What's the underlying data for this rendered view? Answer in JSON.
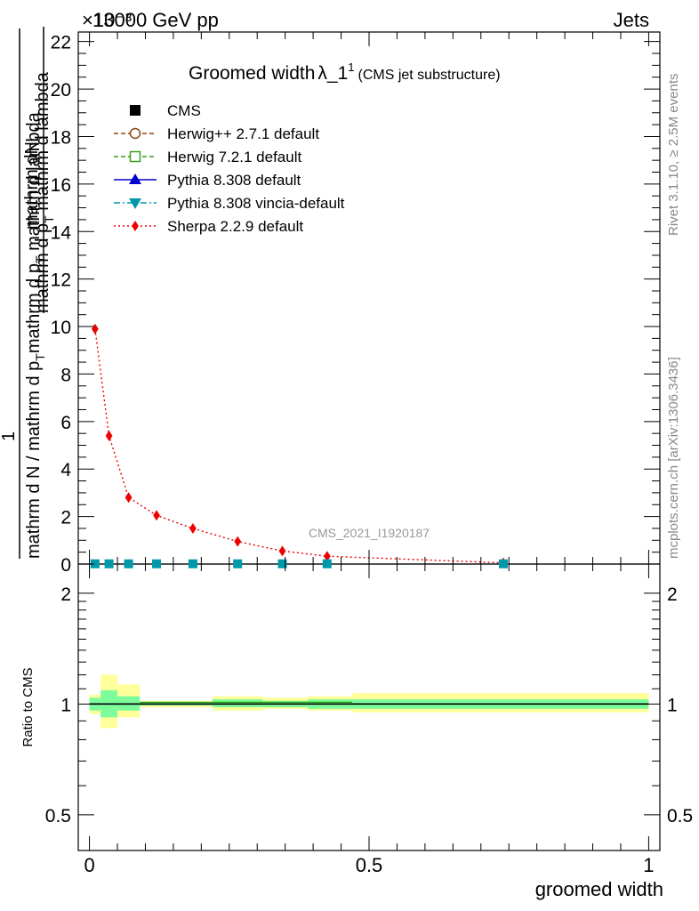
{
  "header": {
    "left": "13000 GeV pp",
    "right": "Jets",
    "multiplier": "×10⁻³"
  },
  "side": {
    "rivet": "Rivet 3.1.10, ≥ 2.5M events",
    "mcplots": "mcplots.cern.ch [arXiv:1306.3436]"
  },
  "plot_title": {
    "main": "Groomed width",
    "lambda": "λ_1",
    "sup": "1",
    "sub": "(CMS jet substructure)"
  },
  "watermark": "CMS_2021_I1920187",
  "ylabel": {
    "top_num": "mathrm dN",
    "top_den": "mathrm d p",
    "top_den_sub": "T",
    "top_den_tail": " mathrm d lambda",
    "one": "1",
    "bot_pre": "mathrm d N / mathrm d p",
    "bot_sub": "T",
    "bot_tail": "mathrm d p",
    "bot_sub2": "T",
    "bot_tail2": " mathrm d lambda"
  },
  "ratio_ylabel": "Ratio to CMS",
  "xlabel": "groomed width",
  "legend": [
    {
      "label": "CMS",
      "color": "#000000",
      "marker": "square-filled",
      "line": "none"
    },
    {
      "label": "Herwig++ 2.7.1 default",
      "color": "#8b4513",
      "marker": "circle-open",
      "line": "dashed"
    },
    {
      "label": "Herwig 7.2.1 default",
      "color": "#3a9d23",
      "marker": "square-open",
      "line": "dashed"
    },
    {
      "label": "Pythia 8.308 default",
      "color": "#0000cc",
      "marker": "triangle-up",
      "line": "solid"
    },
    {
      "label": "Pythia 8.308 vincia-default",
      "color": "#0099aa",
      "marker": "triangle-down",
      "line": "dashdot"
    },
    {
      "label": "Sherpa 2.2.9 default",
      "color": "#ee0000",
      "marker": "diamond",
      "line": "dotted"
    }
  ],
  "chart_data": {
    "type": "line",
    "x_ticks": [
      "0",
      "0.5",
      "1"
    ],
    "y_ticks": [
      "0",
      "2",
      "4",
      "6",
      "8",
      "10",
      "12",
      "14",
      "16",
      "18",
      "20",
      "22"
    ],
    "ratio_ticks": [
      "0.5",
      "1",
      "2"
    ],
    "xlim": [
      -0.02,
      1.02
    ],
    "ylim": [
      0,
      22.4
    ],
    "ratio_ylim": [
      0.4,
      2.4
    ],
    "ratio_log": true,
    "main_series": [
      {
        "name": "Sherpa 2.2.9 default",
        "x": [
          0.01,
          0.035,
          0.07,
          0.12,
          0.185,
          0.265,
          0.345,
          0.425,
          0.74
        ],
        "y": [
          9.9,
          5.4,
          2.8,
          2.05,
          1.5,
          0.95,
          0.55,
          0.33,
          0.05
        ]
      },
      {
        "name": "CMS",
        "x": [
          0.01,
          0.035,
          0.07,
          0.12,
          0.185,
          0.265,
          0.345,
          0.425,
          0.74
        ],
        "y": [
          0.01,
          0.01,
          0.01,
          0.01,
          0.01,
          0.01,
          0.01,
          0.01,
          0.01
        ]
      }
    ],
    "ratio_bands": [
      {
        "x0": 0.0,
        "x1": 0.02,
        "inner": [
          0.96,
          1.04
        ],
        "outer": [
          0.94,
          1.06
        ]
      },
      {
        "x0": 0.02,
        "x1": 0.05,
        "inner": [
          0.92,
          1.09
        ],
        "outer": [
          0.86,
          1.2
        ]
      },
      {
        "x0": 0.05,
        "x1": 0.09,
        "inner": [
          0.96,
          1.05
        ],
        "outer": [
          0.92,
          1.13
        ]
      },
      {
        "x0": 0.09,
        "x1": 0.15,
        "inner": [
          0.99,
          1.01
        ],
        "outer": [
          0.98,
          1.02
        ]
      },
      {
        "x0": 0.15,
        "x1": 0.22,
        "inner": [
          0.99,
          1.01
        ],
        "outer": [
          0.98,
          1.02
        ]
      },
      {
        "x0": 0.22,
        "x1": 0.31,
        "inner": [
          0.98,
          1.03
        ],
        "outer": [
          0.96,
          1.05
        ]
      },
      {
        "x0": 0.31,
        "x1": 0.39,
        "inner": [
          0.98,
          1.02
        ],
        "outer": [
          0.97,
          1.04
        ]
      },
      {
        "x0": 0.39,
        "x1": 0.47,
        "inner": [
          0.97,
          1.03
        ],
        "outer": [
          0.96,
          1.05
        ]
      },
      {
        "x0": 0.47,
        "x1": 1.0,
        "inner": [
          0.97,
          1.03
        ],
        "outer": [
          0.95,
          1.07
        ]
      }
    ],
    "ratio_line": 1
  }
}
